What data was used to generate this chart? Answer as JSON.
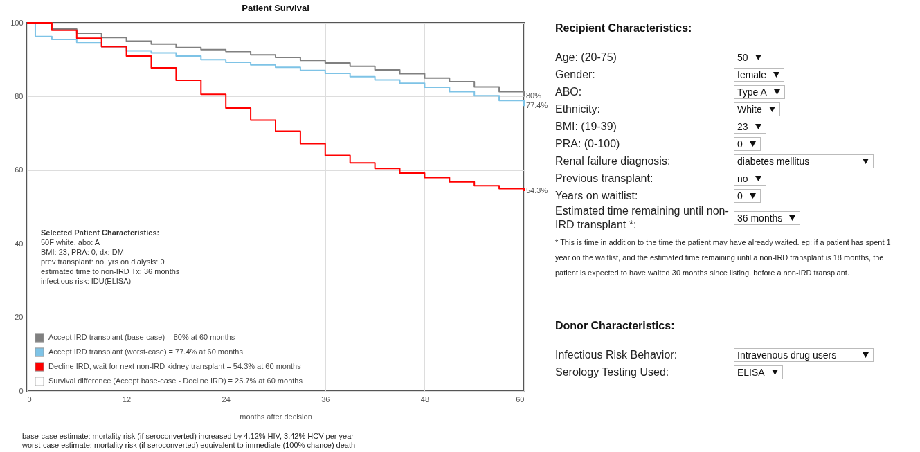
{
  "chart_data": [
    {
      "type": "step",
      "title": "Patient Survival",
      "xlabel": "months after decision",
      "xlim": [
        0,
        60
      ],
      "xticks": [
        0,
        12,
        24,
        36,
        48,
        60
      ],
      "ylim": [
        0,
        100
      ],
      "yticks": [
        0,
        20,
        40,
        60,
        80,
        100
      ],
      "grid": true,
      "legend": "bottom left",
      "series": [
        {
          "name": "Accept IRD transplant (base-case) = 80% at 60 months",
          "color": "#808080",
          "x": [
            0,
            3,
            6,
            9,
            12,
            15,
            18,
            21,
            24,
            27,
            30,
            33,
            36,
            39,
            42,
            45,
            48,
            51,
            54,
            57,
            60
          ],
          "values": [
            100,
            98.3,
            97.2,
            96.0,
            95.0,
            94.2,
            93.3,
            92.7,
            92.2,
            91.3,
            90.6,
            89.8,
            89.1,
            88.2,
            87.2,
            86.2,
            85.0,
            84.0,
            82.6,
            81.3,
            80
          ],
          "value_labels": [
            null,
            null,
            null,
            null,
            null,
            null,
            null,
            null,
            null,
            null,
            null,
            null,
            null,
            null,
            null,
            null,
            null,
            null,
            null,
            null,
            "80%"
          ]
        },
        {
          "name": "Accept IRD transplant (worst-case) = 77.4% at 60 months",
          "color": "#7ec3e6",
          "x": [
            0,
            1,
            3,
            6,
            9,
            12,
            15,
            18,
            21,
            24,
            27,
            30,
            33,
            36,
            39,
            42,
            45,
            48,
            51,
            54,
            57,
            60
          ],
          "values": [
            100,
            96.3,
            95.5,
            94.7,
            93.5,
            92.4,
            91.8,
            91.0,
            90.0,
            89.3,
            88.6,
            87.9,
            87.1,
            86.3,
            85.4,
            84.5,
            83.6,
            82.5,
            81.3,
            80.2,
            78.9,
            77.4
          ],
          "value_labels": [
            null,
            null,
            null,
            null,
            null,
            null,
            null,
            null,
            null,
            null,
            null,
            null,
            null,
            null,
            null,
            null,
            null,
            null,
            null,
            null,
            null,
            "77.4%"
          ]
        },
        {
          "name": "Decline IRD, wait for next non-IRD kidney transplant = 54.3% at 60 months",
          "color": "#ff0000",
          "x": [
            0,
            3,
            6,
            9,
            12,
            15,
            18,
            21,
            24,
            27,
            30,
            33,
            36,
            39,
            42,
            45,
            48,
            51,
            54,
            57,
            60
          ],
          "values": [
            100,
            98.0,
            95.8,
            93.5,
            91.0,
            87.8,
            84.4,
            80.6,
            76.9,
            73.6,
            70.6,
            67.2,
            64.0,
            62.0,
            60.5,
            59.2,
            58.0,
            56.8,
            55.8,
            55.0,
            54.3
          ],
          "value_labels": [
            null,
            null,
            null,
            null,
            null,
            null,
            null,
            null,
            null,
            null,
            null,
            null,
            null,
            null,
            null,
            null,
            null,
            null,
            null,
            null,
            "54.3%"
          ]
        },
        {
          "name": "Survival difference (Accept base-case - Decline IRD) = 25.7% at 60 months",
          "color": "#ffffff"
        }
      ],
      "annotations": [
        "Selected Patient Characteristics:",
        "50F white, abo: A",
        "BMI: 23, PRA: 0, dx: DM",
        "prev transplant: no, yrs on dialysis: 0",
        "estimated time to non-IRD Tx: 36 months",
        "infectious risk: IDU(ELISA)",
        "base-case estimate: mortality risk (if seroconverted) increased by 4.12% HIV, 3.42% HCV per year",
        "worst-case estimate: mortality risk (if seroconverted) equivalent to immediate (100% chance) death"
      ]
    },
    {
      "type": "other",
      "title": "Recipient Characteristics:",
      "annotations": [
        "Age: (20-75)",
        "50",
        "Gender:",
        "female",
        "ABO:",
        "Type A",
        "Ethnicity:",
        "White",
        "BMI: (19-39)",
        "23",
        "PRA: (0-100)",
        "0",
        "Renal failure diagnosis:",
        "diabetes mellitus",
        "Previous transplant:",
        "no",
        "Years on waitlist:",
        "0",
        "Estimated time remaining until non-IRD transplant *:",
        "36 months",
        "* This is time in addition to the time the patient may have already waited. eg: if a patient has spent 1 year on the waitlist, and the estimated time remaining until a non-IRD transplant is 18 months, the patient is expected to have waited 30 months since listing, before a non-IRD transplant."
      ]
    },
    {
      "type": "other",
      "title": "Donor Characteristics:",
      "annotations": [
        "Infectious Risk Behavior:",
        "Intravenous drug users",
        "Serology Testing Used:",
        "ELISA"
      ]
    }
  ]
}
